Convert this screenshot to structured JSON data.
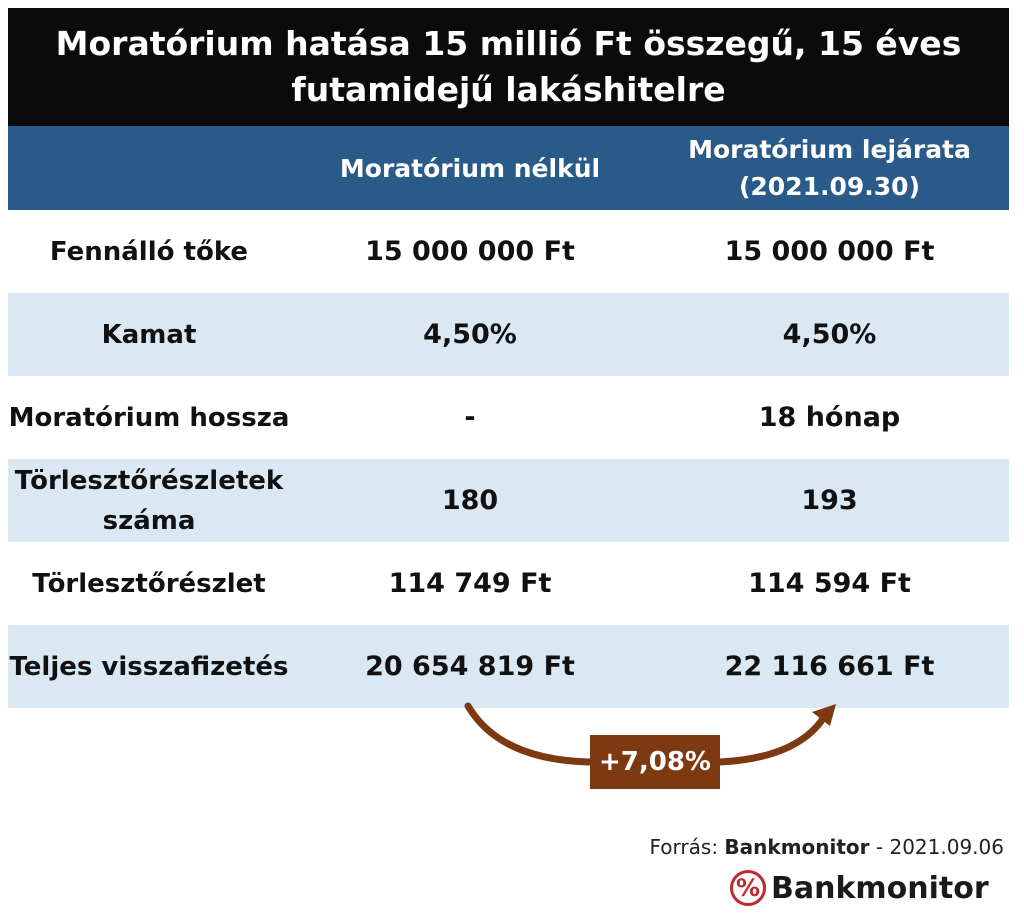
{
  "title": "Moratórium hatása 15 millió Ft összegű, 15 éves futamidejű lakáshitelre",
  "chart_data": {
    "type": "table",
    "columns": [
      "",
      "Moratórium nélkül",
      "Moratórium lejárata (2021.09.30)"
    ],
    "rows": [
      {
        "label": "Fennálló tőke",
        "values": [
          "15 000 000 Ft",
          "15 000 000 Ft"
        ],
        "shaded": false
      },
      {
        "label": "Kamat",
        "values": [
          "4,50%",
          "4,50%"
        ],
        "shaded": true
      },
      {
        "label": "Moratórium hossza",
        "values": [
          "-",
          "18 hónap"
        ],
        "shaded": false
      },
      {
        "label": "Törlesztőrészletek száma",
        "values": [
          "180",
          "193"
        ],
        "shaded": true
      },
      {
        "label": "Törlesztőrészlet",
        "values": [
          "114 749 Ft",
          "114 594 Ft"
        ],
        "shaded": false
      },
      {
        "label": "Teljes visszafizetés",
        "values": [
          "20 654 819 Ft",
          "22 116 661 Ft"
        ],
        "shaded": true
      }
    ],
    "annotation": "+7,08%"
  },
  "source": {
    "prefix": "Forrás: ",
    "name": "Bankmonitor",
    "suffix": " - 2021.09.06"
  },
  "brand": {
    "icon_glyph": "%",
    "icon": "percent-circle-icon",
    "name": "Bankmonitor"
  },
  "colors": {
    "title_bg": "#0b0b0b",
    "header_bg": "#2a5a8a",
    "shaded_row": "#dae8f4",
    "accent": "#7d3a12",
    "brand_red": "#c0282d"
  }
}
